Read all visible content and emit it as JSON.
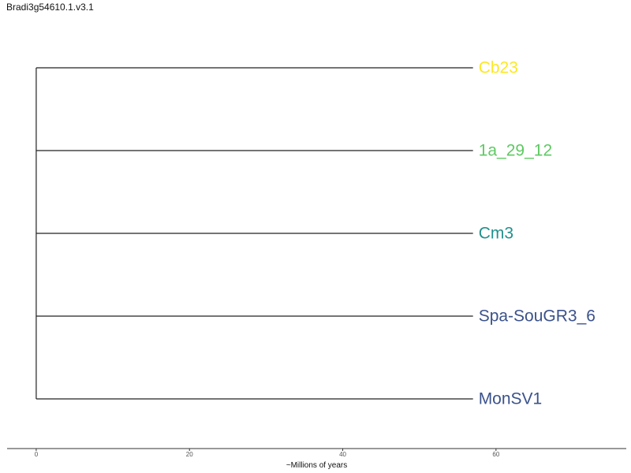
{
  "chart_data": {
    "type": "dendrogram",
    "title": "Bradi3g54610.1.v3.1",
    "xlabel": "~Millions of years",
    "xlim": [
      -3.8,
      77
    ],
    "xticks": [
      0,
      20,
      40,
      60
    ],
    "tip_x": 57,
    "grid": false,
    "leaves": [
      {
        "label": "Cb23",
        "color": "#FDE725"
      },
      {
        "label": "1a_29_12",
        "color": "#5EC962"
      },
      {
        "label": "Cm3",
        "color": "#21918C"
      },
      {
        "label": "Spa-SouGR3_6",
        "color": "#3B528B"
      },
      {
        "label": "MonSV1",
        "color": "#3B528B"
      }
    ]
  }
}
